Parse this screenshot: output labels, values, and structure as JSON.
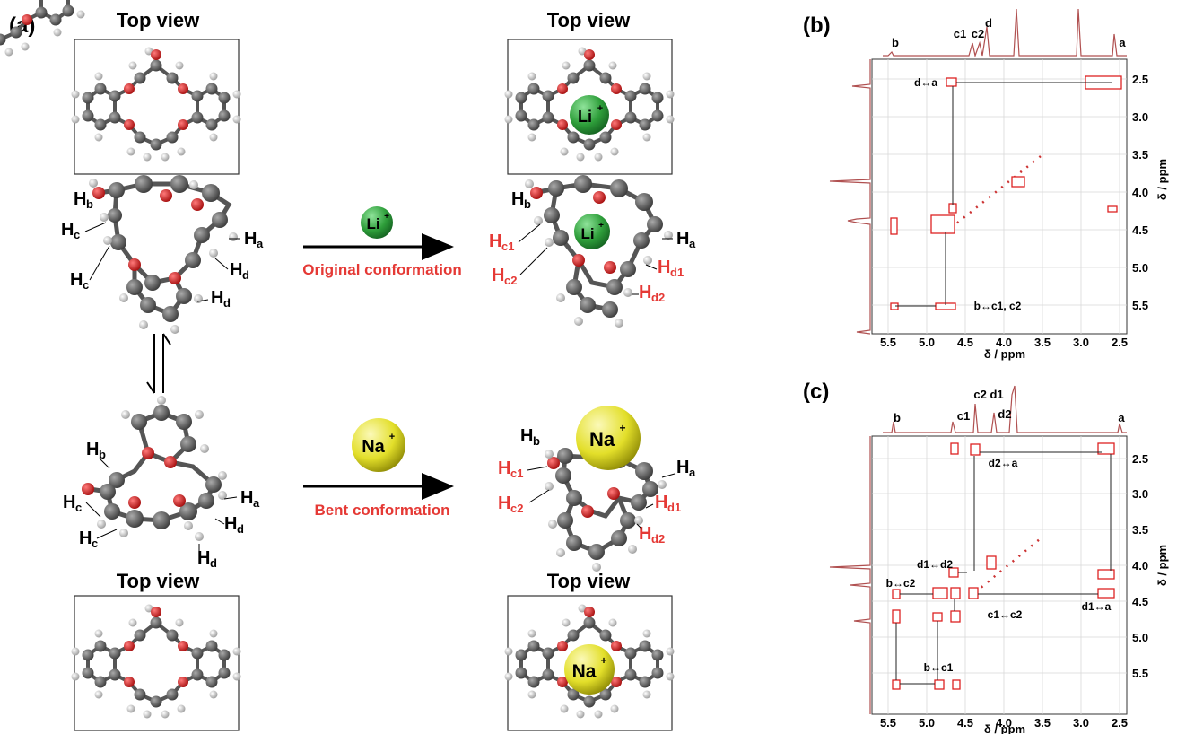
{
  "panel_a": {
    "label": "(a)",
    "top_view": "Top view",
    "li_ion": "Li",
    "na_ion": "Na",
    "plus": "+",
    "original_conformation": "Original conformation",
    "bent_conformation": "Bent conformation",
    "h_label": "H",
    "sub": {
      "a": "a",
      "b": "b",
      "c": "c",
      "d": "d",
      "c1": "c1",
      "c2": "c2",
      "d1": "d1",
      "d2": "d2"
    },
    "colors": {
      "accent_red": "#e53935",
      "li_green": "#2e9e3a",
      "na_yellow": "#e3df2a",
      "oxygen": "#cc1f1f",
      "carbon": "#555555"
    }
  },
  "panel_b": {
    "label": "(b)",
    "axis_label": "δ / ppm",
    "x_ticks": [
      "5.5",
      "5.0",
      "4.5",
      "4.0",
      "3.5",
      "3.0",
      "2.5"
    ],
    "y_ticks": [
      "2.5",
      "3.0",
      "3.5",
      "4.0",
      "4.5",
      "5.0",
      "5.5"
    ],
    "peak_labels": [
      "b",
      "c1",
      "c2",
      "d",
      "a"
    ],
    "annotations": [
      "d↔a",
      "b↔c1, c2"
    ]
  },
  "panel_c": {
    "label": "(c)",
    "axis_label": "δ / ppm",
    "x_ticks": [
      "5.5",
      "5.0",
      "4.5",
      "4.0",
      "3.5",
      "3.0",
      "2.5"
    ],
    "y_ticks": [
      "2.5",
      "3.0",
      "3.5",
      "4.0",
      "4.5",
      "5.0",
      "5.5"
    ],
    "peak_labels": [
      "b",
      "c1",
      "c2 d1",
      "d2",
      "a"
    ],
    "annotations": [
      "d2↔a",
      "d1↔d2",
      "b↔c2",
      "c1↔c2",
      "d1↔a",
      "b↔c1"
    ]
  }
}
